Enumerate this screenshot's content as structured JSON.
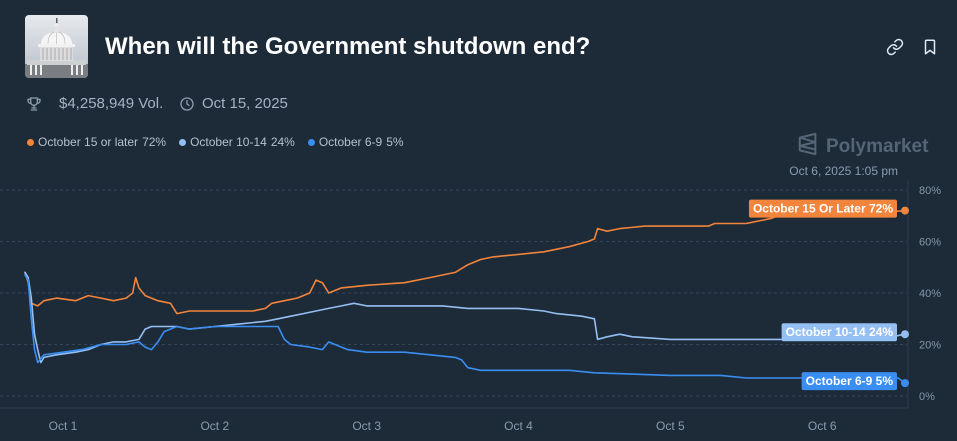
{
  "market": {
    "title": "When will the Government shutdown end?",
    "volume": "$4,258,949 Vol.",
    "end_date": "Oct 15, 2025",
    "thumbnail_icon": "capitol-dome-image"
  },
  "actions": {
    "share_icon": "link-icon",
    "bookmark_icon": "bookmark-icon"
  },
  "meta_icons": {
    "volume": "trophy-icon",
    "date": "clock-icon"
  },
  "brand": {
    "name": "Polymarket",
    "icon": "polymarket-logo-icon"
  },
  "timestamp": "Oct 6, 2025 1:05 pm",
  "chart_data": {
    "type": "line",
    "xlim": [
      "2025-09-30T18:00",
      "2025-10-06T13:05"
    ],
    "ylim": [
      0,
      80
    ],
    "y_ticks": [
      80,
      60,
      40,
      20,
      0
    ],
    "y_tick_labels": [
      "80%",
      "60%",
      "40%",
      "20%",
      "0%"
    ],
    "x_ticks": [
      "2025-10-01T00:00",
      "2025-10-02T00:00",
      "2025-10-03T00:00",
      "2025-10-04T00:00",
      "2025-10-05T00:00",
      "2025-10-06T00:00"
    ],
    "x_tick_labels": [
      "Oct 1",
      "Oct 2",
      "Oct 3",
      "Oct 4",
      "Oct 5",
      "Oct 6"
    ],
    "grid": true,
    "legend_position": "top-left",
    "series": [
      {
        "name": "October 15 or later",
        "chance": "72%",
        "end_label": "October 15 Or Later 72%",
        "color": "#f2843b",
        "points": [
          [
            "2025-09-30T18:00",
            48
          ],
          [
            "2025-09-30T18:30",
            44
          ],
          [
            "2025-09-30T19:00",
            36
          ],
          [
            "2025-09-30T20:00",
            35
          ],
          [
            "2025-09-30T21:00",
            37
          ],
          [
            "2025-09-30T23:00",
            38
          ],
          [
            "2025-10-01T02:00",
            37
          ],
          [
            "2025-10-01T04:00",
            39
          ],
          [
            "2025-10-01T06:00",
            38
          ],
          [
            "2025-10-01T08:00",
            37
          ],
          [
            "2025-10-01T10:00",
            38
          ],
          [
            "2025-10-01T11:00",
            40
          ],
          [
            "2025-10-01T11:30",
            46
          ],
          [
            "2025-10-01T12:00",
            42
          ],
          [
            "2025-10-01T13:00",
            39
          ],
          [
            "2025-10-01T15:00",
            37
          ],
          [
            "2025-10-01T17:00",
            36
          ],
          [
            "2025-10-01T18:00",
            32
          ],
          [
            "2025-10-01T20:00",
            33
          ],
          [
            "2025-10-02T00:00",
            33
          ],
          [
            "2025-10-02T06:00",
            33
          ],
          [
            "2025-10-02T08:00",
            34
          ],
          [
            "2025-10-02T09:00",
            36
          ],
          [
            "2025-10-02T11:00",
            37
          ],
          [
            "2025-10-02T13:00",
            38
          ],
          [
            "2025-10-02T15:00",
            40
          ],
          [
            "2025-10-02T16:00",
            45
          ],
          [
            "2025-10-02T17:00",
            44
          ],
          [
            "2025-10-02T18:00",
            40
          ],
          [
            "2025-10-02T20:00",
            42
          ],
          [
            "2025-10-03T00:00",
            43
          ],
          [
            "2025-10-03T06:00",
            44
          ],
          [
            "2025-10-03T10:00",
            46
          ],
          [
            "2025-10-03T14:00",
            48
          ],
          [
            "2025-10-03T16:00",
            51
          ],
          [
            "2025-10-03T18:00",
            53
          ],
          [
            "2025-10-03T20:00",
            54
          ],
          [
            "2025-10-04T00:00",
            55
          ],
          [
            "2025-10-04T04:00",
            56
          ],
          [
            "2025-10-04T08:00",
            58
          ],
          [
            "2025-10-04T11:00",
            60
          ],
          [
            "2025-10-04T12:00",
            61
          ],
          [
            "2025-10-04T12:30",
            65
          ],
          [
            "2025-10-04T14:00",
            64
          ],
          [
            "2025-10-04T16:00",
            65
          ],
          [
            "2025-10-04T20:00",
            66
          ],
          [
            "2025-10-05T06:00",
            66
          ],
          [
            "2025-10-05T07:00",
            67
          ],
          [
            "2025-10-05T12:00",
            67
          ],
          [
            "2025-10-05T14:00",
            68
          ],
          [
            "2025-10-05T16:00",
            69
          ],
          [
            "2025-10-05T18:00",
            71
          ],
          [
            "2025-10-06T08:00",
            71
          ],
          [
            "2025-10-06T13:05",
            72
          ]
        ]
      },
      {
        "name": "October 10-14",
        "chance": "24%",
        "end_label": "October 10-14 24%",
        "color": "#94bff3",
        "points": [
          [
            "2025-09-30T18:00",
            48
          ],
          [
            "2025-09-30T18:30",
            46
          ],
          [
            "2025-09-30T19:00",
            38
          ],
          [
            "2025-09-30T19:30",
            24
          ],
          [
            "2025-09-30T20:00",
            18
          ],
          [
            "2025-09-30T20:30",
            13
          ],
          [
            "2025-09-30T21:00",
            15
          ],
          [
            "2025-09-30T23:00",
            16
          ],
          [
            "2025-10-01T02:00",
            17
          ],
          [
            "2025-10-01T04:00",
            18
          ],
          [
            "2025-10-01T06:00",
            20
          ],
          [
            "2025-10-01T08:00",
            21
          ],
          [
            "2025-10-01T10:00",
            21
          ],
          [
            "2025-10-01T12:00",
            22
          ],
          [
            "2025-10-01T13:00",
            26
          ],
          [
            "2025-10-01T14:00",
            27
          ],
          [
            "2025-10-01T18:00",
            27
          ],
          [
            "2025-10-01T20:00",
            26
          ],
          [
            "2025-10-02T00:00",
            27
          ],
          [
            "2025-10-02T04:00",
            28
          ],
          [
            "2025-10-02T08:00",
            29
          ],
          [
            "2025-10-02T10:00",
            30
          ],
          [
            "2025-10-02T12:00",
            31
          ],
          [
            "2025-10-02T14:00",
            32
          ],
          [
            "2025-10-02T16:00",
            33
          ],
          [
            "2025-10-02T18:00",
            34
          ],
          [
            "2025-10-02T20:00",
            35
          ],
          [
            "2025-10-02T22:00",
            36
          ],
          [
            "2025-10-03T00:00",
            35
          ],
          [
            "2025-10-03T12:00",
            35
          ],
          [
            "2025-10-03T16:00",
            34
          ],
          [
            "2025-10-04T00:00",
            34
          ],
          [
            "2025-10-04T04:00",
            33
          ],
          [
            "2025-10-04T06:00",
            32
          ],
          [
            "2025-10-04T10:00",
            31
          ],
          [
            "2025-10-04T12:00",
            30
          ],
          [
            "2025-10-04T12:30",
            22
          ],
          [
            "2025-10-04T14:00",
            23
          ],
          [
            "2025-10-04T16:00",
            24
          ],
          [
            "2025-10-04T18:00",
            23
          ],
          [
            "2025-10-05T00:00",
            22
          ],
          [
            "2025-10-06T08:00",
            22
          ],
          [
            "2025-10-06T11:00",
            23
          ],
          [
            "2025-10-06T13:05",
            24
          ]
        ]
      },
      {
        "name": "October 6-9",
        "chance": "5%",
        "end_label": "October 6-9 5%",
        "color": "#3a8ef2",
        "points": [
          [
            "2025-09-30T18:00",
            47
          ],
          [
            "2025-09-30T18:30",
            45
          ],
          [
            "2025-09-30T19:00",
            30
          ],
          [
            "2025-09-30T19:30",
            18
          ],
          [
            "2025-09-30T20:00",
            13
          ],
          [
            "2025-09-30T21:00",
            16
          ],
          [
            "2025-10-01T00:00",
            17
          ],
          [
            "2025-10-01T03:00",
            18
          ],
          [
            "2025-10-01T06:00",
            20
          ],
          [
            "2025-10-01T10:00",
            20
          ],
          [
            "2025-10-01T12:00",
            21
          ],
          [
            "2025-10-01T13:00",
            19
          ],
          [
            "2025-10-01T14:00",
            18
          ],
          [
            "2025-10-01T15:00",
            21
          ],
          [
            "2025-10-01T16:00",
            25
          ],
          [
            "2025-10-01T18:00",
            27
          ],
          [
            "2025-10-01T20:00",
            26
          ],
          [
            "2025-10-02T00:00",
            27
          ],
          [
            "2025-10-02T10:00",
            27
          ],
          [
            "2025-10-02T11:00",
            22
          ],
          [
            "2025-10-02T12:00",
            20
          ],
          [
            "2025-10-02T15:00",
            19
          ],
          [
            "2025-10-02T17:00",
            18
          ],
          [
            "2025-10-02T18:00",
            21
          ],
          [
            "2025-10-02T19:00",
            20
          ],
          [
            "2025-10-02T21:00",
            18
          ],
          [
            "2025-10-03T00:00",
            17
          ],
          [
            "2025-10-03T06:00",
            17
          ],
          [
            "2025-10-03T10:00",
            16
          ],
          [
            "2025-10-03T14:00",
            15
          ],
          [
            "2025-10-03T15:00",
            14
          ],
          [
            "2025-10-03T16:00",
            11
          ],
          [
            "2025-10-03T18:00",
            10
          ],
          [
            "2025-10-04T08:00",
            10
          ],
          [
            "2025-10-04T12:00",
            9
          ],
          [
            "2025-10-04T18:00",
            8.5
          ],
          [
            "2025-10-05T00:00",
            8
          ],
          [
            "2025-10-05T08:00",
            8
          ],
          [
            "2025-10-05T12:00",
            7
          ],
          [
            "2025-10-06T12:00",
            7
          ],
          [
            "2025-10-06T13:05",
            5
          ]
        ]
      }
    ]
  }
}
